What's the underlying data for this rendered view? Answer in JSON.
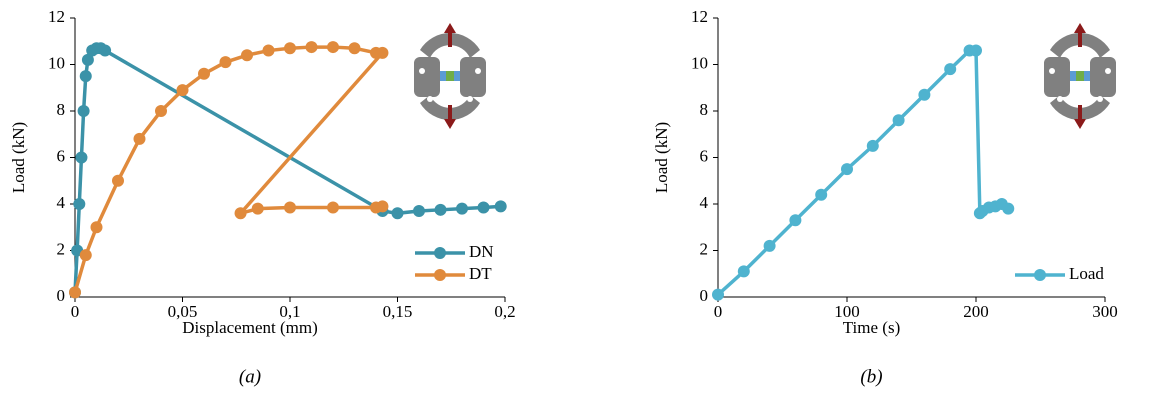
{
  "chart_data": [
    {
      "type": "line",
      "x_label": "Displacement (mm)",
      "y_label": "Load (kN)",
      "caption": "(a)",
      "xlim": [
        0,
        0.2
      ],
      "xticks": [
        0,
        {
          "value": 0.05,
          "label": "0,05"
        },
        {
          "value": 0.1,
          "label": "0,1"
        },
        {
          "value": 0.15,
          "label": "0,15"
        },
        {
          "value": 0.2,
          "label": "0,2"
        }
      ],
      "ylim": [
        0,
        12
      ],
      "yticks": [
        0,
        2,
        4,
        6,
        8,
        10,
        12
      ],
      "legend": "lower right",
      "series": [
        {
          "name": "DN",
          "color": "#3b92a8",
          "x": [
            0,
            0.001,
            0.002,
            0.003,
            0.004,
            0.005,
            0.006,
            0.008,
            0.01,
            0.012,
            0.014,
            0.143,
            0.15,
            0.16,
            0.17,
            0.18,
            0.19,
            0.198
          ],
          "values": [
            0.2,
            2,
            4,
            6,
            8,
            9.5,
            10.2,
            10.6,
            10.7,
            10.7,
            10.6,
            3.7,
            3.6,
            3.7,
            3.75,
            3.8,
            3.85,
            3.9
          ]
        },
        {
          "name": "DT",
          "color": "#e08a3c",
          "x": [
            0,
            0.005,
            0.01,
            0.02,
            0.03,
            0.04,
            0.05,
            0.06,
            0.07,
            0.08,
            0.09,
            0.1,
            0.11,
            0.12,
            0.13,
            0.14,
            0.143,
            0.077,
            0.085,
            0.1,
            0.12,
            0.14,
            0.143
          ],
          "values": [
            0.2,
            1.8,
            3,
            5,
            6.8,
            8,
            8.9,
            9.6,
            10.1,
            10.4,
            10.6,
            10.7,
            10.75,
            10.75,
            10.7,
            10.5,
            10.5,
            3.6,
            3.8,
            3.85,
            3.85,
            3.85,
            3.9
          ]
        }
      ]
    },
    {
      "type": "line",
      "x_label": "Time (s)",
      "y_label": "Load (kN)",
      "caption": "(b)",
      "xlim": [
        0,
        300
      ],
      "xticks": [
        0,
        100,
        200,
        300
      ],
      "ylim": [
        0,
        12
      ],
      "yticks": [
        0,
        2,
        4,
        6,
        8,
        10,
        12
      ],
      "legend": "lower right",
      "series": [
        {
          "name": "Load",
          "color": "#4fb3cf",
          "x": [
            0,
            20,
            40,
            60,
            80,
            100,
            120,
            140,
            160,
            180,
            195,
            200,
            203,
            205,
            210,
            215,
            220,
            225
          ],
          "values": [
            0.1,
            1.1,
            2.2,
            3.3,
            4.4,
            5.5,
            6.5,
            7.6,
            8.7,
            9.8,
            10.6,
            10.6,
            3.6,
            3.7,
            3.85,
            3.9,
            4.0,
            3.8
          ]
        }
      ]
    }
  ]
}
